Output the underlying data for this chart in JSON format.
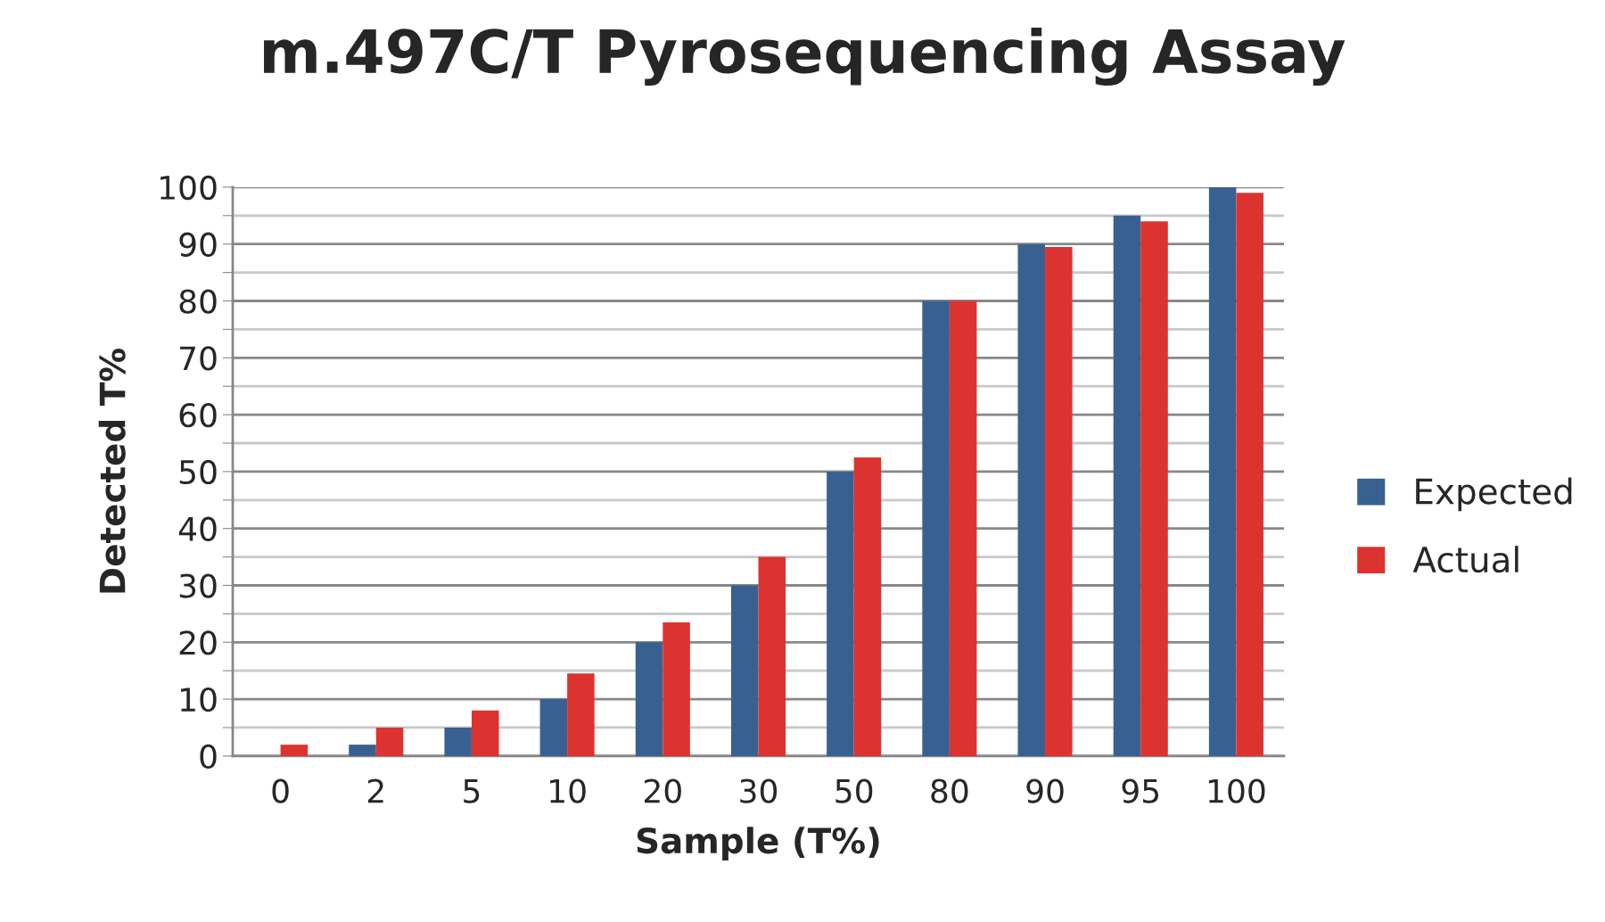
{
  "chart_data": {
    "type": "bar",
    "title": "m.497C/T Pyrosequencing Assay",
    "xlabel": "Sample (T%)",
    "ylabel": "Detected T%",
    "categories": [
      "0",
      "2",
      "5",
      "10",
      "20",
      "30",
      "50",
      "80",
      "90",
      "95",
      "100"
    ],
    "series": [
      {
        "name": "Expected",
        "color": "#386192",
        "values": [
          0,
          2,
          5,
          10,
          20,
          30,
          50,
          80,
          90,
          95,
          100
        ]
      },
      {
        "name": "Actual",
        "color": "#dd3330",
        "values": [
          2,
          5,
          8,
          14.5,
          23.5,
          35,
          52.5,
          80,
          89.5,
          94,
          99
        ]
      }
    ],
    "ylim": [
      0,
      100
    ],
    "yticks": [
      0,
      {
        "value": 5,
        "label": null
      },
      10,
      {
        "value": 15,
        "label": null
      },
      20,
      {
        "value": 25,
        "label": null
      },
      30,
      {
        "value": 35,
        "label": null
      },
      40,
      {
        "value": 45,
        "label": null
      },
      50,
      {
        "value": 55,
        "label": null
      },
      60,
      {
        "value": 65,
        "label": null
      },
      70,
      {
        "value": 75,
        "label": null
      },
      80,
      {
        "value": 85,
        "label": null
      },
      90,
      {
        "value": 95,
        "label": null
      },
      100
    ],
    "grid": "y",
    "legend": "right"
  }
}
